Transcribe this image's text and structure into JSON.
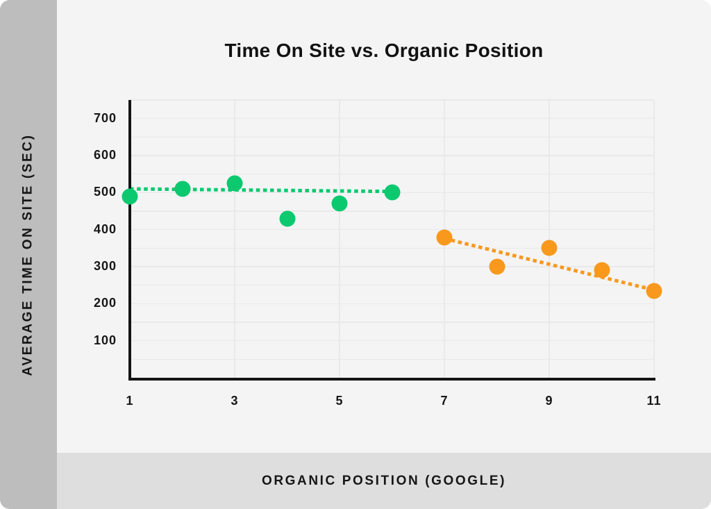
{
  "chart_data": {
    "type": "scatter",
    "title": "Time On Site vs. Organic Position",
    "xlabel": "ORGANIC POSITION (GOOGLE)",
    "ylabel": "AVERAGE TIME ON SITE (SEC)",
    "x_axis": {
      "min": 1,
      "max": 11,
      "tick_labels": [
        1,
        3,
        5,
        7,
        9,
        11
      ],
      "gridline_positions": [
        3,
        5,
        7,
        9,
        11
      ]
    },
    "y_axis": {
      "min": 0,
      "max": 750,
      "tick_labels": [
        700,
        600,
        500,
        400,
        300,
        200,
        100
      ],
      "grid_step": 50
    },
    "grid": true,
    "legend_position": "none",
    "series": [
      {
        "name": "organic-positions-1-6",
        "color": "#0cc96f",
        "marker": "circle",
        "points": [
          [
            1,
            490
          ],
          [
            2,
            510
          ],
          [
            3,
            525
          ],
          [
            4,
            430
          ],
          [
            5,
            470
          ],
          [
            6,
            500
          ]
        ],
        "trendline": {
          "style": "dotted",
          "start": [
            1,
            510
          ],
          "end": [
            6,
            503
          ]
        }
      },
      {
        "name": "organic-positions-7-11",
        "color": "#f8991d",
        "marker": "circle",
        "points": [
          [
            7,
            378
          ],
          [
            8,
            300
          ],
          [
            9,
            350
          ],
          [
            10,
            290
          ],
          [
            11,
            235
          ]
        ],
        "trendline": {
          "style": "dotted",
          "start": [
            7,
            376
          ],
          "end": [
            11,
            237
          ]
        }
      }
    ]
  },
  "ui_colors": {
    "background": "#f4f4f5",
    "sidebar_band": "#bdbdbd",
    "bottom_band": "#dedede",
    "gridline": "#e9e9e9",
    "axis_line": "#141414",
    "text": "#161616"
  }
}
